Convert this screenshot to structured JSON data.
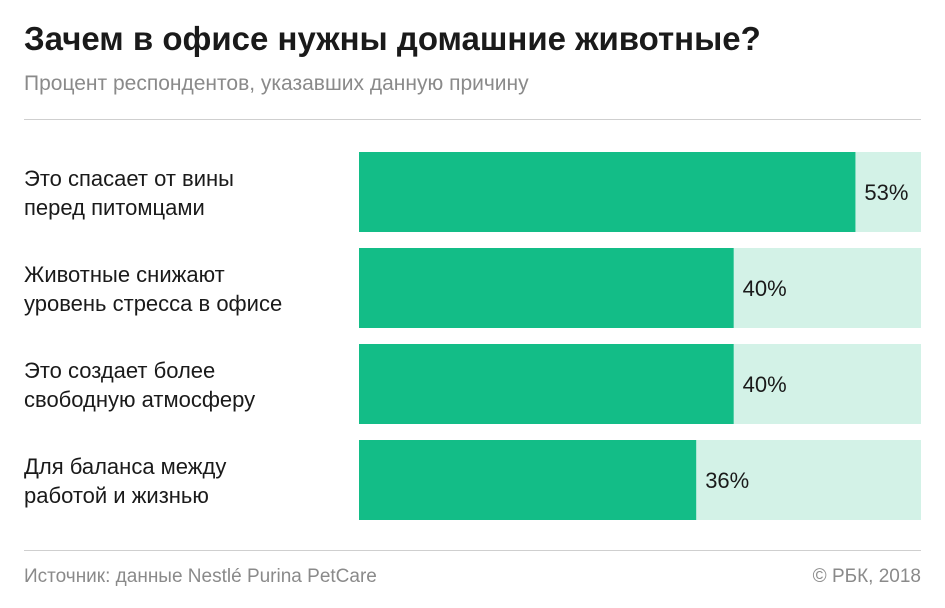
{
  "header": {
    "title": "Зачем в офисе нужны домашние животные?",
    "subtitle": "Процент респондентов, указавших данную причину"
  },
  "footer": {
    "source": "Источник: данные Nestlé Purina PetCare",
    "copyright": "© РБК, 2018"
  },
  "colors": {
    "bar": "#13bd87",
    "track": "#d3f2e7"
  },
  "chart_data": {
    "type": "bar",
    "orientation": "horizontal",
    "title": "Зачем в офисе нужны домашние животные?",
    "subtitle": "Процент респондентов, указавших данную причину",
    "categories": [
      [
        "Это спасает от вины",
        "перед питомцами"
      ],
      [
        "Животные снижают",
        "уровень стресса в офисе"
      ],
      [
        "Это создает более",
        "свободную атмосферу"
      ],
      [
        "Для баланса между",
        "работой и жизнью"
      ]
    ],
    "values": [
      53,
      40,
      40,
      36
    ],
    "value_labels": [
      "53%",
      "40%",
      "40%",
      "36%"
    ],
    "xlim": [
      0,
      60
    ],
    "unit": "%",
    "grid": false,
    "legend": "none"
  }
}
